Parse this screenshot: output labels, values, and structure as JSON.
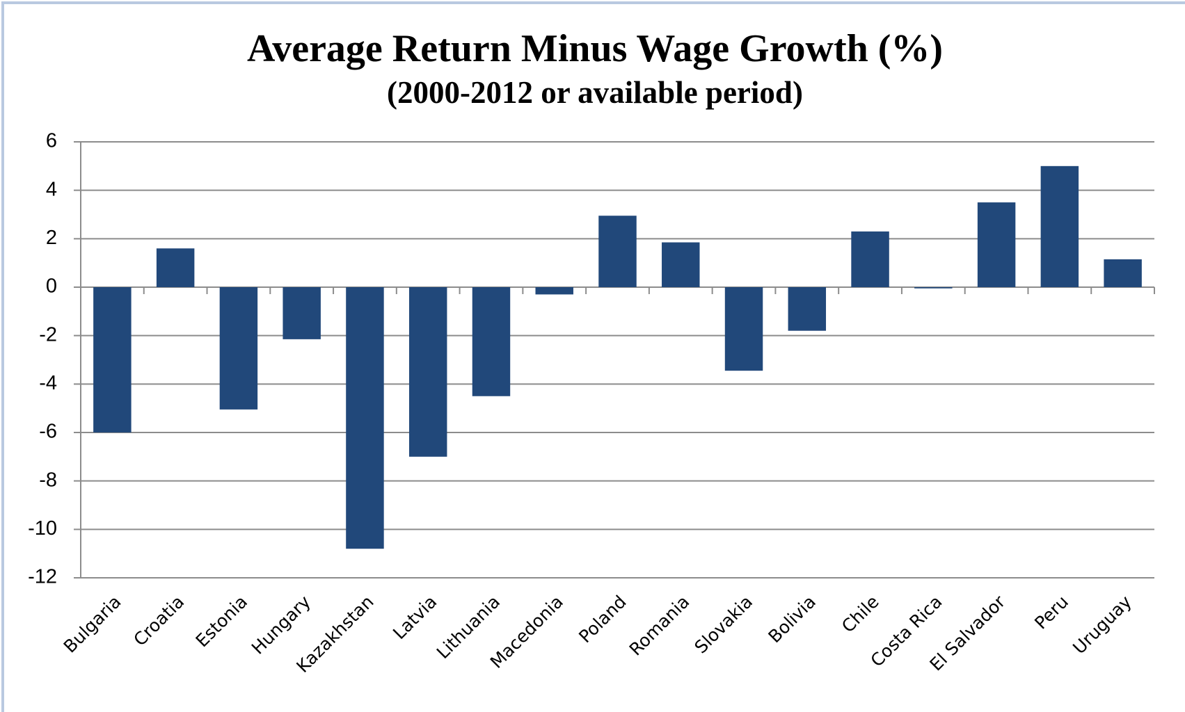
{
  "chart_data": {
    "type": "bar",
    "title": "Average Return Minus Wage Growth (%)",
    "subtitle": "(2000-2012 or available period)",
    "categories": [
      "Bulgaria",
      "Croatia",
      "Estonia",
      "Hungary",
      "Kazakhstan",
      "Latvia",
      "Lithuania",
      "Macedonia",
      "Poland",
      "Romania",
      "Slovakia",
      "Bolivia",
      "Chile",
      "Costa Rica",
      "El Salvador",
      "Peru",
      "Uruguay"
    ],
    "values": [
      -6.0,
      1.6,
      -5.05,
      -2.15,
      -10.8,
      -7.0,
      -4.5,
      -0.3,
      2.95,
      1.85,
      -3.45,
      -1.8,
      2.3,
      -0.05,
      3.5,
      5.0,
      1.15
    ],
    "color": "#21487a",
    "ylim": [
      -12,
      6
    ],
    "yticks": [
      -12,
      -10,
      -8,
      -6,
      -4,
      -2,
      0,
      2,
      4,
      6
    ],
    "grid": true
  }
}
